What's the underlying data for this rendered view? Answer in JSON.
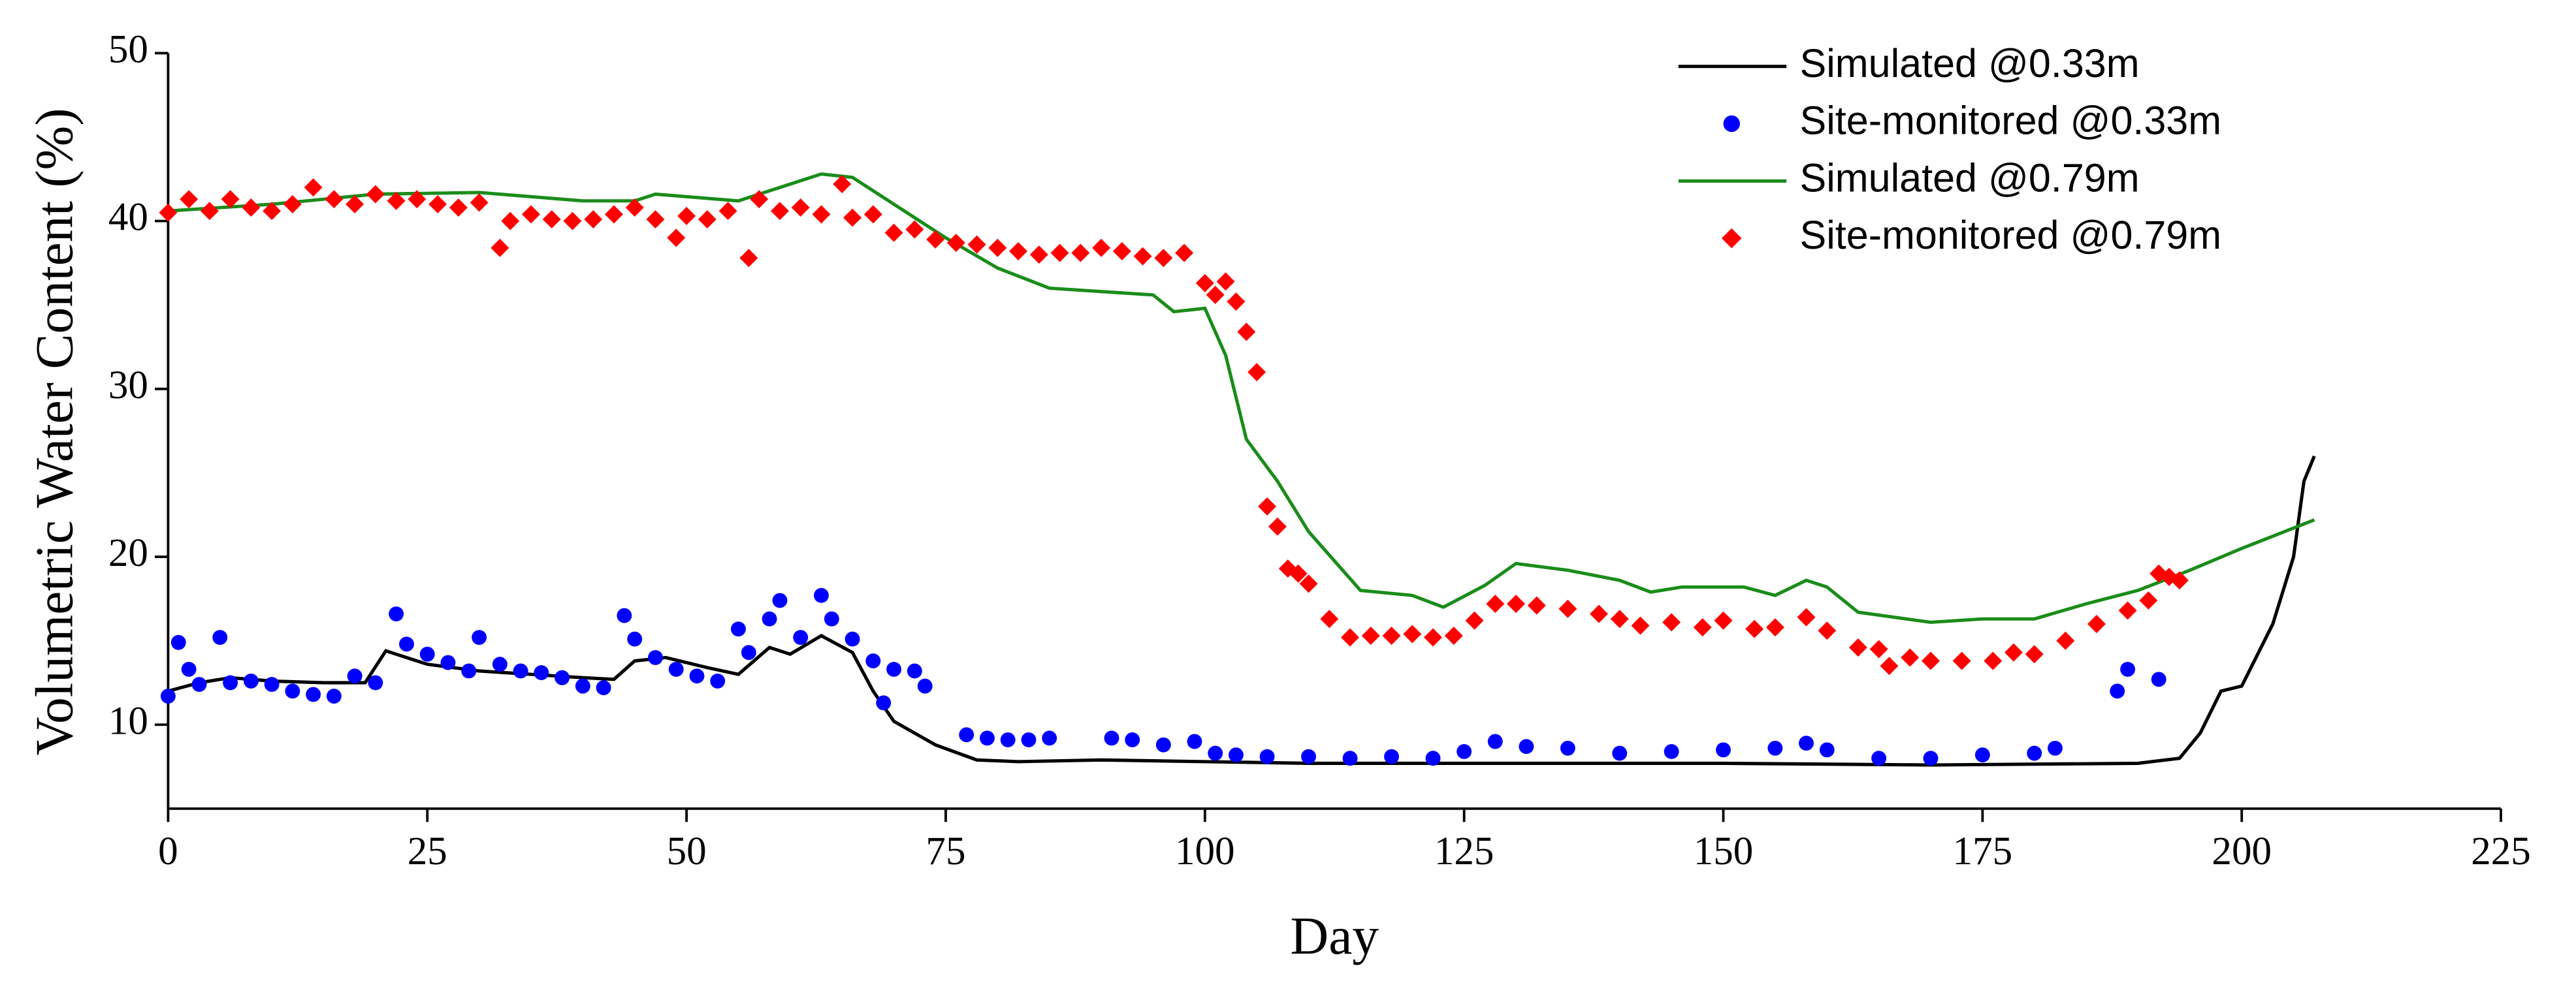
{
  "chart_data": {
    "type": "line",
    "x_label": "Day",
    "y_label": "Volumetric Water Content (%)",
    "xlim": [
      0,
      225
    ],
    "ylim": [
      5,
      50
    ],
    "xticks": [
      0,
      25,
      50,
      75,
      100,
      125,
      150,
      175,
      200,
      225
    ],
    "yticks": [
      10,
      20,
      30,
      40,
      50
    ],
    "legend": "upper right",
    "series": [
      {
        "name": "Simulated @0.33m",
        "type": "line",
        "color": "#000000",
        "x": [
          0,
          3,
          6,
          10,
          15,
          19,
          21,
          25,
          30,
          35,
          40,
          43,
          45,
          48,
          52,
          55,
          58,
          60,
          63,
          66,
          68,
          70,
          74,
          78,
          82,
          90,
          100,
          110,
          130,
          150,
          170,
          190,
          194,
          196,
          198,
          200,
          203,
          205,
          206,
          207
        ],
        "values": [
          12,
          12.5,
          12.8,
          12.6,
          12.5,
          12.5,
          14.4,
          13.6,
          13.2,
          13.0,
          12.8,
          12.7,
          13.8,
          14.0,
          13.4,
          13.0,
          14.6,
          14.2,
          15.3,
          14.3,
          12.0,
          10.2,
          8.8,
          7.9,
          7.8,
          7.9,
          7.8,
          7.7,
          7.7,
          7.7,
          7.6,
          7.7,
          8.0,
          9.5,
          12.0,
          12.3,
          16,
          20,
          24.5,
          26
        ]
      },
      {
        "name": "Site-monitored @0.33m",
        "type": "scatter",
        "marker": "circle",
        "color": "#0000ff",
        "x": [
          0,
          1,
          2,
          3,
          5,
          6,
          8,
          10,
          12,
          14,
          16,
          18,
          20,
          22,
          23,
          25,
          27,
          29,
          30,
          32,
          34,
          36,
          38,
          40,
          42,
          44,
          45,
          47,
          49,
          51,
          53,
          55,
          56,
          58,
          59,
          61,
          63,
          64,
          66,
          68,
          69,
          70,
          72,
          73,
          77,
          79,
          81,
          83,
          85,
          91,
          93,
          96,
          99,
          101,
          103,
          106,
          110,
          114,
          118,
          122,
          125,
          128,
          131,
          135,
          140,
          145,
          150,
          155,
          158,
          160,
          165,
          170,
          175,
          180,
          182,
          188,
          189,
          192
        ],
        "values": [
          11.7,
          14.9,
          13.3,
          12.4,
          15.2,
          12.5,
          12.6,
          12.4,
          12,
          11.8,
          11.7,
          12.9,
          12.5,
          16.6,
          14.8,
          14.2,
          13.7,
          13.2,
          15.2,
          13.6,
          13.2,
          13.1,
          12.8,
          12.3,
          12.2,
          16.5,
          15.1,
          14,
          13.3,
          12.9,
          12.6,
          15.7,
          14.3,
          16.3,
          17.4,
          15.2,
          17.7,
          16.3,
          15.1,
          13.8,
          11.3,
          13.3,
          13.2,
          12.3,
          9.4,
          9.2,
          9.1,
          9.1,
          9.2,
          9.2,
          9.1,
          8.8,
          9.0,
          8.3,
          8.2,
          8.1,
          8.1,
          8.0,
          8.1,
          8.0,
          8.4,
          9.0,
          8.7,
          8.6,
          8.3,
          8.4,
          8.5,
          8.6,
          8.9,
          8.5,
          8.0,
          8.0,
          8.2,
          8.3,
          8.6,
          12.0,
          13.3,
          12.7
        ]
      },
      {
        "name": "Simulated @0.79m",
        "type": "line",
        "color": "#1a8c1a",
        "x": [
          0,
          10,
          20,
          30,
          40,
          45,
          47,
          55,
          60,
          63,
          66,
          70,
          75,
          80,
          85,
          90,
          95,
          97,
          100,
          102,
          104,
          107,
          110,
          115,
          120,
          123,
          127,
          130,
          135,
          140,
          143,
          146,
          152,
          155,
          158,
          160,
          163,
          170,
          175,
          180,
          185,
          190,
          195,
          200,
          207
        ],
        "values": [
          40.6,
          41,
          41.6,
          41.7,
          41.2,
          41.2,
          41.6,
          41.2,
          42.2,
          42.8,
          42.6,
          41,
          39,
          37.2,
          36,
          35.8,
          35.6,
          34.6,
          34.8,
          32,
          27,
          24.5,
          21.5,
          18,
          17.7,
          17,
          18.3,
          19.6,
          19.2,
          18.6,
          17.9,
          18.2,
          18.2,
          17.7,
          18.6,
          18.2,
          16.7,
          16.1,
          16.3,
          16.3,
          17.2,
          18.0,
          19.2,
          20.5,
          22.2
        ]
      },
      {
        "name": "Site-monitored @0.79m",
        "type": "scatter",
        "marker": "diamond",
        "color": "#ff0000",
        "x": [
          0,
          2,
          4,
          6,
          8,
          10,
          12,
          14,
          16,
          18,
          20,
          22,
          24,
          26,
          28,
          30,
          32,
          33,
          35,
          37,
          39,
          41,
          43,
          45,
          47,
          49,
          50,
          52,
          54,
          56,
          57,
          59,
          61,
          63,
          65,
          66,
          68,
          70,
          72,
          74,
          76,
          78,
          80,
          82,
          84,
          86,
          88,
          90,
          92,
          94,
          96,
          98,
          100,
          101,
          102,
          103,
          104,
          105,
          106,
          107,
          108,
          109,
          110,
          112,
          114,
          116,
          118,
          120,
          122,
          124,
          126,
          128,
          130,
          132,
          135,
          138,
          140,
          142,
          145,
          148,
          150,
          153,
          155,
          158,
          160,
          163,
          165,
          166,
          168,
          170,
          173,
          176,
          178,
          180,
          183,
          186,
          189,
          191,
          192,
          193,
          194
        ],
        "values": [
          40.5,
          41.3,
          40.6,
          41.3,
          40.8,
          40.6,
          41,
          42,
          41.3,
          41,
          41.6,
          41.2,
          41.3,
          41,
          40.8,
          41.1,
          38.4,
          40,
          40.4,
          40.1,
          40,
          40.1,
          40.4,
          40.8,
          40.1,
          39,
          40.3,
          40.1,
          40.6,
          37.8,
          41.3,
          40.6,
          40.8,
          40.4,
          42.2,
          40.2,
          40.4,
          39.3,
          39.5,
          38.9,
          38.7,
          38.6,
          38.4,
          38.2,
          38,
          38.1,
          38.1,
          38.4,
          38.2,
          37.9,
          37.8,
          38.1,
          36.3,
          35.6,
          36.4,
          35.2,
          33.4,
          31,
          23,
          21.8,
          19.3,
          19,
          18.4,
          16.3,
          15.2,
          15.3,
          15.3,
          15.4,
          15.2,
          15.3,
          16.2,
          17.2,
          17.2,
          17.1,
          16.9,
          16.6,
          16.3,
          15.9,
          16.1,
          15.8,
          16.2,
          15.7,
          15.8,
          16.4,
          15.6,
          14.6,
          14.5,
          13.5,
          14,
          13.8,
          13.8,
          13.8,
          14.3,
          14.2,
          15,
          16,
          16.8,
          17.4,
          19,
          18.8,
          18.6
        ]
      }
    ]
  }
}
